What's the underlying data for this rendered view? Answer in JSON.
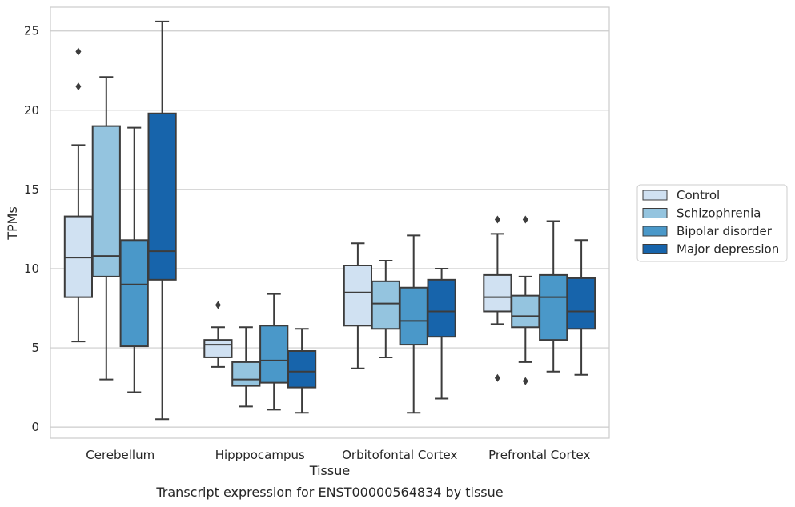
{
  "chart_data": {
    "type": "box",
    "xlabel": "Tissue",
    "ylabel": "TPMs",
    "caption": "Transcript expression for ENST00000564834 by tissue",
    "ylim": [
      -0.7,
      26.5
    ],
    "yticks": [
      0,
      5,
      10,
      15,
      20,
      25
    ],
    "grid": "horizontal",
    "legend_position": "right",
    "categories": [
      "Cerebellum",
      "Hipppocampus",
      "Orbitofontal Cortex",
      "Prefrontal Cortex"
    ],
    "series": [
      {
        "name": "Control",
        "color": "#d0e1f2",
        "boxes": [
          {
            "whislo": 5.4,
            "q1": 8.2,
            "med": 10.7,
            "q3": 13.3,
            "whishi": 17.8,
            "fliers": [
              21.5,
              23.7
            ]
          },
          {
            "whislo": 3.8,
            "q1": 4.4,
            "med": 5.2,
            "q3": 5.5,
            "whishi": 6.3,
            "fliers": [
              7.7
            ]
          },
          {
            "whislo": 3.7,
            "q1": 6.4,
            "med": 8.5,
            "q3": 10.2,
            "whishi": 11.6,
            "fliers": []
          },
          {
            "whislo": 6.5,
            "q1": 7.3,
            "med": 8.2,
            "q3": 9.6,
            "whishi": 12.2,
            "fliers": [
              3.1,
              13.1
            ]
          }
        ]
      },
      {
        "name": "Schizophrenia",
        "color": "#94c4df",
        "boxes": [
          {
            "whislo": 3.0,
            "q1": 9.5,
            "med": 10.8,
            "q3": 19.0,
            "whishi": 22.1,
            "fliers": []
          },
          {
            "whislo": 1.3,
            "q1": 2.6,
            "med": 3.0,
            "q3": 4.1,
            "whishi": 6.3,
            "fliers": []
          },
          {
            "whislo": 4.4,
            "q1": 6.2,
            "med": 7.8,
            "q3": 9.2,
            "whishi": 10.5,
            "fliers": []
          },
          {
            "whislo": 4.1,
            "q1": 6.3,
            "med": 7.0,
            "q3": 8.3,
            "whishi": 9.5,
            "fliers": [
              2.9,
              13.1
            ]
          }
        ]
      },
      {
        "name": "Bipolar disorder",
        "color": "#4a98c9",
        "boxes": [
          {
            "whislo": 2.2,
            "q1": 5.1,
            "med": 9.0,
            "q3": 11.8,
            "whishi": 18.9,
            "fliers": []
          },
          {
            "whislo": 1.1,
            "q1": 2.8,
            "med": 4.2,
            "q3": 6.4,
            "whishi": 8.4,
            "fliers": []
          },
          {
            "whislo": 0.9,
            "q1": 5.2,
            "med": 6.7,
            "q3": 8.8,
            "whishi": 12.1,
            "fliers": []
          },
          {
            "whislo": 3.5,
            "q1": 5.5,
            "med": 8.2,
            "q3": 9.6,
            "whishi": 13.0,
            "fliers": []
          }
        ]
      },
      {
        "name": "Major depression",
        "color": "#1764ab",
        "boxes": [
          {
            "whislo": 0.5,
            "q1": 9.3,
            "med": 11.1,
            "q3": 19.8,
            "whishi": 25.6,
            "fliers": []
          },
          {
            "whislo": 0.9,
            "q1": 2.5,
            "med": 3.5,
            "q3": 4.8,
            "whishi": 6.2,
            "fliers": []
          },
          {
            "whislo": 1.8,
            "q1": 5.7,
            "med": 7.3,
            "q3": 9.3,
            "whishi": 10.0,
            "fliers": []
          },
          {
            "whislo": 3.3,
            "q1": 6.2,
            "med": 7.3,
            "q3": 9.4,
            "whishi": 11.8,
            "fliers": []
          }
        ]
      }
    ]
  }
}
